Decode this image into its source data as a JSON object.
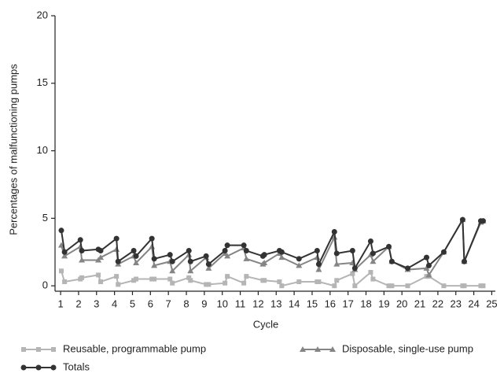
{
  "chart_data": {
    "type": "line",
    "x_label": "Cycle",
    "y_label": "Percentages of malfunctioning pumps",
    "x": [
      1.04,
      1.22,
      2.1,
      2.18,
      3.1,
      3.23,
      4.11,
      4.2,
      5.07,
      5.2,
      6.08,
      6.21,
      7.09,
      7.22,
      8.14,
      8.23,
      9.1,
      9.24,
      10.15,
      10.28,
      11.2,
      11.34,
      12.26,
      12.34,
      13.18,
      13.31,
      14.27,
      15.28,
      15.37,
      16.24,
      16.37,
      17.25,
      17.38,
      18.26,
      18.39,
      19.27,
      19.44,
      20.32,
      21.37,
      21.5,
      22.33,
      23.38,
      23.47,
      24.39,
      24.52
    ],
    "series": [
      {
        "name": "Reusable, programmable pump",
        "color": "#b5b5b5",
        "marker": "square",
        "values": [
          1.1,
          0.3,
          0.5,
          0.6,
          0.8,
          0.3,
          0.7,
          0.1,
          0.4,
          0.5,
          0.5,
          0.5,
          0.5,
          0.2,
          0.6,
          0.4,
          0.1,
          0.1,
          0.2,
          0.7,
          0.2,
          0.7,
          0.4,
          0.4,
          0.3,
          0.0,
          0.3,
          0.3,
          0.3,
          0.0,
          0.4,
          0.9,
          0.0,
          1.0,
          0.5,
          0.0,
          0.0,
          0.0,
          0.7,
          0.7,
          0.0,
          0.0,
          0.0,
          0.0,
          0.0
        ]
      },
      {
        "name": "Disposable, single-use pump",
        "color": "#858585",
        "marker": "triangle",
        "values": [
          3.0,
          2.2,
          2.9,
          1.9,
          1.9,
          2.1,
          2.7,
          1.6,
          2.2,
          1.7,
          2.9,
          1.5,
          1.8,
          1.1,
          2.3,
          1.1,
          2.1,
          1.3,
          2.4,
          2.2,
          2.8,
          2.0,
          1.6,
          1.7,
          2.4,
          2.1,
          1.5,
          2.1,
          1.2,
          3.6,
          1.6,
          1.7,
          1.2,
          2.3,
          1.8,
          2.9,
          1.8,
          1.2,
          1.3,
          0.8,
          2.5,
          4.9,
          1.8,
          4.7,
          4.8
        ]
      },
      {
        "name": "Totals",
        "color": "#333333",
        "marker": "circle",
        "values": [
          4.1,
          2.5,
          3.4,
          2.6,
          2.7,
          2.6,
          3.5,
          1.8,
          2.6,
          2.2,
          3.5,
          2.0,
          2.3,
          1.8,
          2.6,
          1.8,
          2.2,
          1.6,
          2.6,
          3.0,
          3.0,
          2.6,
          2.2,
          2.3,
          2.6,
          2.5,
          2.0,
          2.6,
          1.6,
          4.0,
          2.4,
          2.6,
          1.3,
          3.3,
          2.4,
          2.9,
          1.8,
          1.3,
          2.1,
          1.5,
          2.5,
          4.9,
          1.8,
          4.8,
          4.8
        ]
      }
    ],
    "xlim": [
      0.69,
      25.2
    ],
    "xticks": [
      1,
      2,
      3,
      4,
      5,
      6,
      7,
      8,
      9,
      10,
      11,
      12,
      13,
      14,
      15,
      16,
      17,
      18,
      19,
      20,
      21,
      22,
      23,
      24,
      25
    ],
    "ylim": [
      -0.4,
      20
    ],
    "yticks": [
      0,
      5,
      10,
      15,
      20
    ],
    "grid": false
  }
}
